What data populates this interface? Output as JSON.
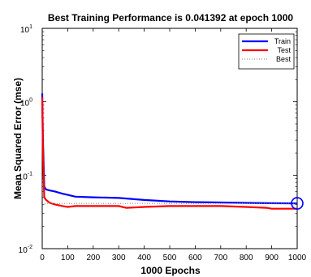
{
  "chart_data": {
    "type": "line",
    "title": "Best Training Performance is 0.041392 at epoch 1000",
    "xlabel": "1000 Epochs",
    "ylabel": "Mean Squared Error  (mse)",
    "xlim": [
      0,
      1000
    ],
    "ylim": [
      0.01,
      10
    ],
    "yscale": "log",
    "grid": false,
    "legend_position": "top-right",
    "x_ticks": [
      0,
      100,
      200,
      300,
      400,
      500,
      600,
      700,
      800,
      900,
      1000
    ],
    "y_ticks": [
      {
        "base": "10",
        "exp": "-2",
        "value": 0.01
      },
      {
        "base": "10",
        "exp": "-1",
        "value": 0.1
      },
      {
        "base": "10",
        "exp": "0",
        "value": 1
      },
      {
        "base": "10",
        "exp": "1",
        "value": 10
      }
    ],
    "series": [
      {
        "name": "Train",
        "color": "#0000ff",
        "style": "solid",
        "x": [
          0,
          3,
          8,
          15,
          30,
          50,
          80,
          100,
          130,
          200,
          300,
          400,
          500,
          600,
          700,
          800,
          900,
          1000
        ],
        "y": [
          1.3,
          0.3,
          0.07,
          0.064,
          0.062,
          0.06,
          0.056,
          0.054,
          0.051,
          0.05,
          0.049,
          0.046,
          0.044,
          0.043,
          0.0425,
          0.042,
          0.0416,
          0.041392
        ]
      },
      {
        "name": "Test",
        "color": "#ff0000",
        "style": "solid",
        "x": [
          0,
          3,
          8,
          15,
          30,
          50,
          80,
          100,
          130,
          200,
          300,
          330,
          400,
          500,
          600,
          700,
          800,
          880,
          900,
          1000
        ],
        "y": [
          1.15,
          0.2,
          0.05,
          0.046,
          0.042,
          0.04,
          0.038,
          0.037,
          0.038,
          0.038,
          0.038,
          0.036,
          0.037,
          0.038,
          0.038,
          0.038,
          0.037,
          0.036,
          0.035,
          0.035
        ]
      },
      {
        "name": "Best",
        "color": "#808080",
        "style": "dotted",
        "x": [
          0,
          1000
        ],
        "y": [
          0.041392,
          0.041392
        ]
      }
    ],
    "best_marker": {
      "x": 1000,
      "y": 0.041392,
      "color": "#0000ff"
    }
  }
}
